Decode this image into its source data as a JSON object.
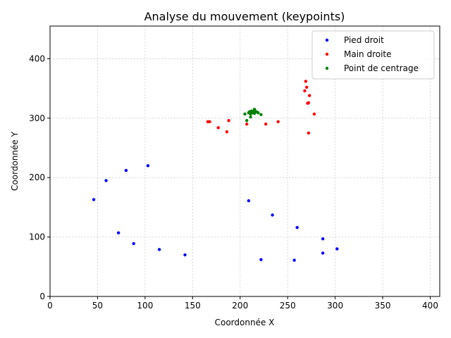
{
  "chart_data": {
    "type": "scatter",
    "title": "Analyse du mouvement (keypoints)",
    "xlabel": "Coordonnée X",
    "ylabel": "Coordonnée Y",
    "xlim": [
      0,
      410
    ],
    "ylim": [
      0,
      455
    ],
    "xticks": [
      0,
      50,
      100,
      150,
      200,
      250,
      300,
      350,
      400
    ],
    "yticks": [
      0,
      100,
      200,
      300,
      400
    ],
    "grid": true,
    "legend_position": "top-right",
    "series": [
      {
        "name": "Pied droit",
        "color": "#0000ff",
        "points": [
          [
            46,
            163
          ],
          [
            59,
            195
          ],
          [
            80,
            212
          ],
          [
            103,
            220
          ],
          [
            72,
            107
          ],
          [
            88,
            89
          ],
          [
            115,
            79
          ],
          [
            142,
            70
          ],
          [
            209,
            161
          ],
          [
            234,
            137
          ],
          [
            260,
            116
          ],
          [
            287,
            97
          ],
          [
            302,
            80
          ],
          [
            287,
            73
          ],
          [
            257,
            61
          ],
          [
            222,
            62
          ]
        ]
      },
      {
        "name": "Main droite",
        "color": "#ff0000",
        "points": [
          [
            166,
            294
          ],
          [
            168,
            294
          ],
          [
            177,
            284
          ],
          [
            186,
            277
          ],
          [
            188,
            296
          ],
          [
            207,
            290
          ],
          [
            227,
            290
          ],
          [
            240,
            294
          ],
          [
            268,
            346
          ],
          [
            269,
            362
          ],
          [
            270,
            352
          ],
          [
            272,
            326
          ],
          [
            271,
            325
          ],
          [
            273,
            338
          ],
          [
            278,
            307
          ],
          [
            272,
            275
          ]
        ]
      },
      {
        "name": "Point de centrage",
        "color": "#008000",
        "points": [
          [
            205,
            307
          ],
          [
            207,
            296
          ],
          [
            209,
            309
          ],
          [
            210,
            311
          ],
          [
            211,
            302
          ],
          [
            211,
            307
          ],
          [
            212,
            312
          ],
          [
            213,
            309
          ],
          [
            214,
            311
          ],
          [
            215,
            315
          ],
          [
            215,
            308
          ],
          [
            216,
            312
          ],
          [
            218,
            310
          ],
          [
            219,
            309
          ],
          [
            222,
            306
          ]
        ]
      }
    ]
  }
}
